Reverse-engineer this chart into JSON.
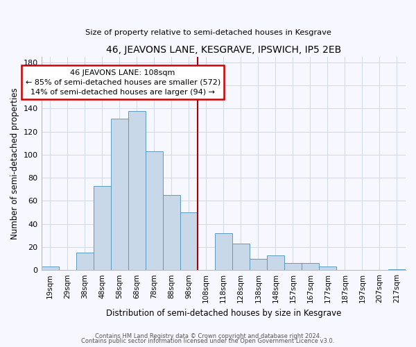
{
  "title": "46, JEAVONS LANE, KESGRAVE, IPSWICH, IP5 2EB",
  "subtitle": "Size of property relative to semi-detached houses in Kesgrave",
  "xlabel": "Distribution of semi-detached houses by size in Kesgrave",
  "ylabel": "Number of semi-detached properties",
  "bar_labels": [
    "19sqm",
    "29sqm",
    "38sqm",
    "48sqm",
    "58sqm",
    "68sqm",
    "78sqm",
    "88sqm",
    "98sqm",
    "108sqm",
    "118sqm",
    "128sqm",
    "138sqm",
    "148sqm",
    "157sqm",
    "167sqm",
    "177sqm",
    "187sqm",
    "197sqm",
    "207sqm",
    "217sqm"
  ],
  "bar_values": [
    3,
    0,
    15,
    73,
    131,
    138,
    103,
    65,
    50,
    0,
    32,
    23,
    10,
    13,
    6,
    6,
    3,
    0,
    0,
    0,
    1
  ],
  "bar_color": "#c8d8e8",
  "bar_edge_color": "#5b9abd",
  "vline_index": 9,
  "vline_color": "#aa0000",
  "annotation_title": "46 JEAVONS LANE: 108sqm",
  "annotation_line1": "← 85% of semi-detached houses are smaller (572)",
  "annotation_line2": "14% of semi-detached houses are larger (94) →",
  "annotation_box_color": "#ffffff",
  "annotation_box_edge": "#cc0000",
  "ylim": [
    0,
    185
  ],
  "yticks": [
    0,
    20,
    40,
    60,
    80,
    100,
    120,
    140,
    160,
    180
  ],
  "footer1": "Contains HM Land Registry data © Crown copyright and database right 2024.",
  "footer2": "Contains public sector information licensed under the Open Government Licence v3.0.",
  "background_color": "#f7f7ff",
  "grid_color": "#d0d8e8"
}
